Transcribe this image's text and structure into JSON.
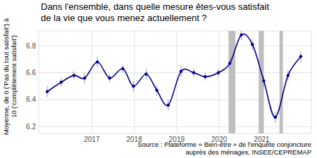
{
  "chart_data": {
    "type": "line",
    "title": [
      "Dans l'ensemble, dans quelle mesure êtes-vous satisfait",
      "de la vie que vous menez actuellement ?"
    ],
    "y_label": [
      "Moyenne, de 0 ('Pas du tout satisfait') à",
      "10 ('complètement satisfait')"
    ],
    "source": [
      "Source : Plateforme « Bien-être » de l'enquête conjoncture",
      "auprès des ménages, INSEE/CEPREMAP"
    ],
    "x": [
      2015.95,
      2016.28,
      2016.58,
      2016.83,
      2017.13,
      2017.42,
      2017.73,
      2017.98,
      2018.28,
      2018.53,
      2018.8,
      2019.1,
      2019.4,
      2019.67,
      2019.98,
      2020.25,
      2020.52,
      2020.78,
      2021.05,
      2021.32,
      2021.62,
      2021.92
    ],
    "values": [
      6.46,
      6.53,
      6.58,
      6.56,
      6.68,
      6.56,
      6.63,
      6.5,
      6.59,
      6.47,
      6.36,
      6.61,
      6.6,
      6.57,
      6.6,
      6.67,
      6.88,
      6.81,
      6.54,
      6.27,
      6.58,
      6.72
    ],
    "errors": [
      0.04,
      0.03,
      0.03,
      0.04,
      0.04,
      0.03,
      0.03,
      0.04,
      0.04,
      0.04,
      0.04,
      0.04,
      0.03,
      0.03,
      0.03,
      0.04,
      0.04,
      0.04,
      0.04,
      0.04,
      0.04,
      0.04
    ],
    "shaded_periods": [
      [
        2020.22,
        2020.38
      ],
      [
        2020.93,
        2021.05
      ],
      [
        2021.42,
        2021.5
      ]
    ],
    "color": "#00008b",
    "marker": "circle",
    "line_style": "smooth",
    "xlim": [
      2015.75,
      2022.17
    ],
    "xticks": [
      2017,
      2018,
      2019,
      2020,
      2021
    ],
    "ylim": [
      6.15,
      6.91
    ],
    "yticks": [
      6.2,
      6.4,
      6.6,
      6.8
    ],
    "grid": true
  }
}
